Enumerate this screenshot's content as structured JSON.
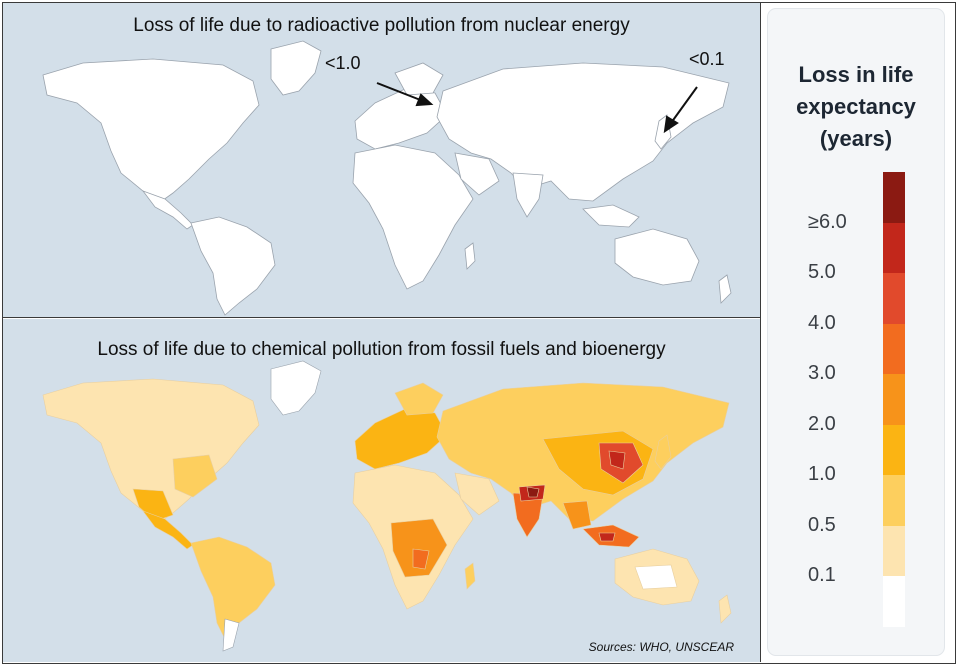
{
  "top_panel": {
    "title": "Loss of life due to radioactive pollution from nuclear energy",
    "annotations": [
      {
        "label": "<1.0",
        "points_to": "Chernobyl region (Ukraine)"
      },
      {
        "label": "<0.1",
        "points_to": "Fukushima (Japan)"
      }
    ]
  },
  "bottom_panel": {
    "title": "Loss of life due to chemical pollution from fossil fuels and bioenergy",
    "sources": "Sources: WHO, UNSCEAR"
  },
  "legend": {
    "title_lines": [
      "Loss in life",
      "expectancy",
      "(years)"
    ],
    "ticks": [
      "≥6.0",
      "5.0",
      "4.0",
      "3.0",
      "2.0",
      "1.0",
      "0.5",
      "0.1"
    ],
    "colors": [
      "#8b1a12",
      "#c2271b",
      "#e14a2c",
      "#f26c1f",
      "#f7931a",
      "#fbb413",
      "#fdcf5e",
      "#fde4b0",
      "#ffffff"
    ],
    "color_names": [
      "dark red",
      "red",
      "orange-red",
      "dark orange",
      "orange",
      "amber",
      "light amber",
      "pale peach",
      "white"
    ]
  },
  "colors": {
    "ocean": "#d3dfe9",
    "land_blank": "#ffffff",
    "border": "#9aa3ad"
  }
}
